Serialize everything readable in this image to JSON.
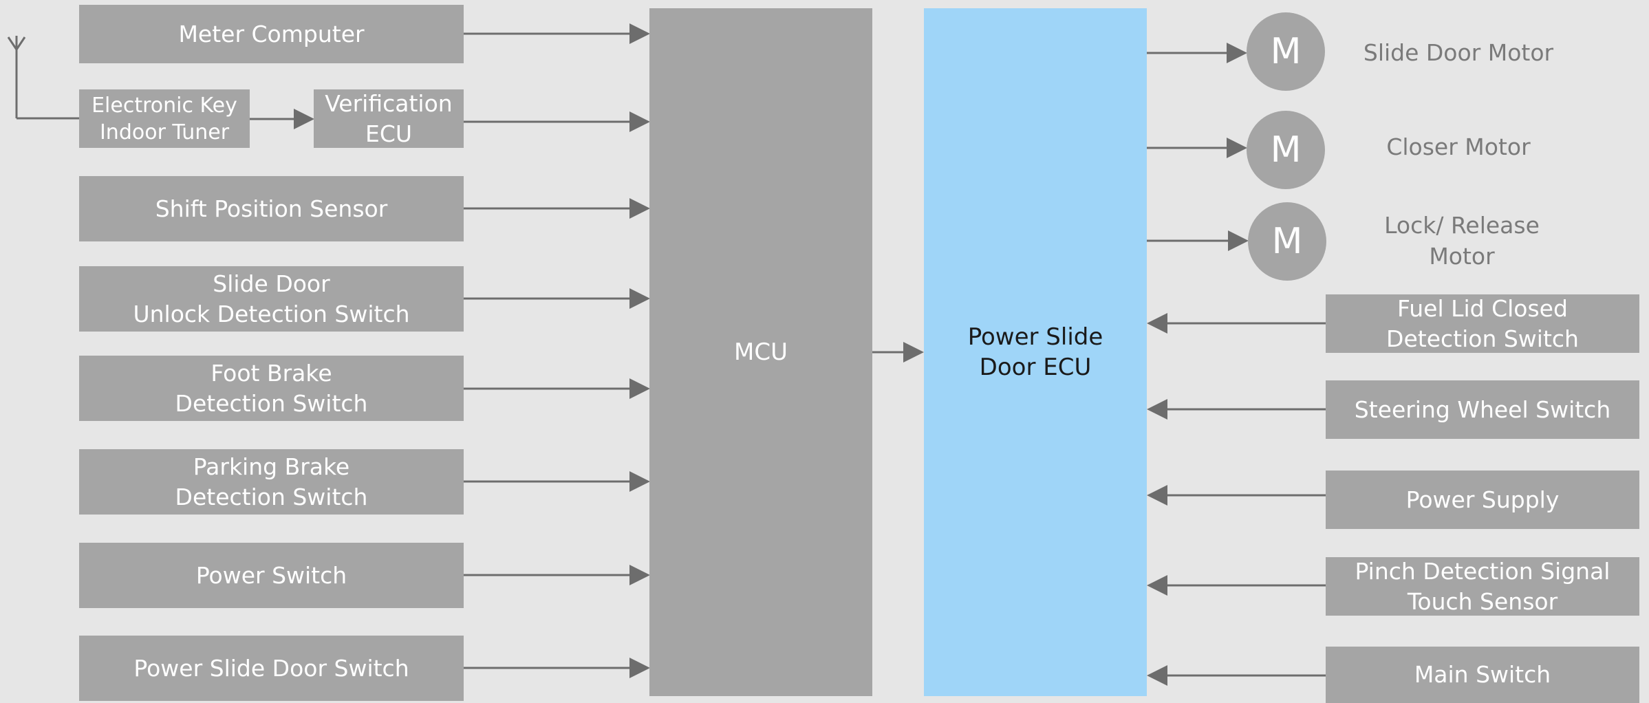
{
  "left_inputs": {
    "meter_computer": [
      "Meter Computer"
    ],
    "electronic_key": [
      "Electronic Key",
      "Indoor Tuner"
    ],
    "verification_ecu": [
      "Verification",
      "ECU"
    ],
    "shift_position": [
      "Shift Position Sensor"
    ],
    "slide_door_unlock": [
      "Slide Door",
      "Unlock Detection Switch"
    ],
    "foot_brake": [
      "Foot Brake",
      "Detection Switch"
    ],
    "parking_brake": [
      "Parking Brake",
      "Detection Switch"
    ],
    "power_switch": [
      "Power Switch"
    ],
    "power_slide_door_switch": [
      "Power Slide Door Switch"
    ]
  },
  "mcu": {
    "label": "MCU"
  },
  "ecu": {
    "lines": [
      "Power Slide",
      "Door ECU"
    ]
  },
  "motors": [
    {
      "symbol": "M",
      "label": [
        "Slide Door Motor"
      ]
    },
    {
      "symbol": "M",
      "label": [
        "Closer Motor"
      ]
    },
    {
      "symbol": "M",
      "label": [
        "Lock/ Release",
        "Motor"
      ]
    }
  ],
  "right_inputs": {
    "fuel_lid": [
      "Fuel Lid Closed",
      "Detection Switch"
    ],
    "steering_wheel": [
      "Steering Wheel Switch"
    ],
    "power_supply": [
      "Power Supply"
    ],
    "pinch_detection": [
      "Pinch Detection Signal",
      "Touch Sensor"
    ],
    "main_switch": [
      "Main Switch"
    ]
  },
  "colors": {
    "background": "#e6e6e6",
    "block": "#a5a5a5",
    "block_text": "#ffffff",
    "ecu_fill": "#9fd5f8",
    "ecu_text": "#1a1a1a",
    "connector": "#6d6d6d",
    "motor_label": "#7a7a7a"
  },
  "icons": {
    "antenna": "antenna-icon"
  }
}
